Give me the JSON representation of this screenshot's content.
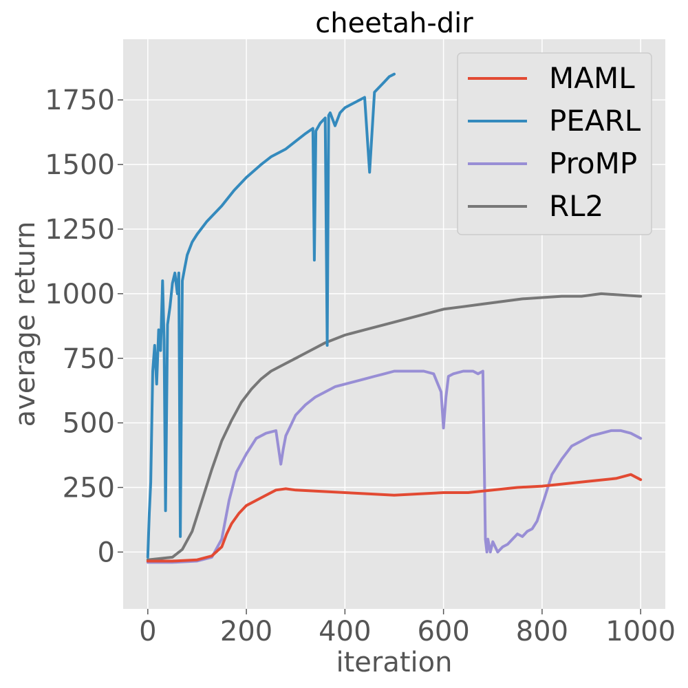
{
  "chart_data": {
    "type": "line",
    "title": "cheetah-dir",
    "xlabel": "iteration",
    "ylabel": "average return",
    "xlim": [
      -50,
      1050
    ],
    "ylim": [
      -220,
      1985
    ],
    "xticks": [
      0,
      200,
      400,
      600,
      800,
      1000
    ],
    "yticks": [
      0,
      250,
      500,
      750,
      1000,
      1250,
      1500,
      1750
    ],
    "grid": true,
    "legend_position": "top-right",
    "background_color": "#e5e5e5",
    "series": [
      {
        "name": "MAML",
        "color": "#e24a33",
        "x": [
          0,
          50,
          100,
          130,
          150,
          160,
          170,
          185,
          200,
          230,
          260,
          280,
          300,
          350,
          400,
          450,
          500,
          550,
          600,
          650,
          700,
          750,
          800,
          850,
          900,
          950,
          980,
          1000
        ],
        "y": [
          -35,
          -35,
          -30,
          -15,
          20,
          70,
          110,
          150,
          180,
          210,
          240,
          245,
          240,
          235,
          230,
          225,
          220,
          225,
          230,
          230,
          240,
          250,
          255,
          265,
          275,
          285,
          300,
          280
        ]
      },
      {
        "name": "PEARL",
        "color": "#348abd",
        "x": [
          0,
          3,
          6,
          10,
          14,
          18,
          22,
          26,
          30,
          33,
          36,
          40,
          45,
          50,
          55,
          60,
          63,
          66,
          70,
          75,
          80,
          90,
          100,
          120,
          150,
          175,
          200,
          230,
          250,
          280,
          300,
          320,
          335,
          338,
          341,
          350,
          360,
          364,
          367,
          370,
          380,
          390,
          400,
          420,
          440,
          450,
          460,
          470,
          480,
          490,
          500
        ],
        "y": [
          -20,
          150,
          270,
          700,
          800,
          650,
          860,
          780,
          1050,
          820,
          160,
          880,
          950,
          1040,
          1080,
          1000,
          1080,
          60,
          1050,
          1100,
          1150,
          1200,
          1230,
          1280,
          1340,
          1400,
          1450,
          1500,
          1530,
          1560,
          1590,
          1620,
          1640,
          1130,
          1630,
          1660,
          1680,
          800,
          1690,
          1700,
          1650,
          1700,
          1720,
          1740,
          1760,
          1470,
          1780,
          1800,
          1820,
          1840,
          1850
        ]
      },
      {
        "name": "ProMP",
        "color": "#988ed5",
        "x": [
          0,
          50,
          100,
          130,
          150,
          165,
          180,
          200,
          220,
          240,
          260,
          270,
          275,
          280,
          290,
          300,
          320,
          340,
          360,
          380,
          400,
          420,
          440,
          460,
          480,
          500,
          520,
          540,
          560,
          580,
          595,
          600,
          605,
          610,
          620,
          640,
          660,
          670,
          680,
          685,
          688,
          690,
          695,
          700,
          710,
          720,
          730,
          740,
          750,
          760,
          770,
          780,
          790,
          800,
          810,
          820,
          840,
          860,
          880,
          900,
          920,
          940,
          960,
          980,
          1000
        ],
        "y": [
          -40,
          -40,
          -35,
          -20,
          50,
          200,
          310,
          380,
          440,
          460,
          470,
          340,
          400,
          450,
          490,
          530,
          570,
          600,
          620,
          640,
          650,
          660,
          670,
          680,
          690,
          700,
          700,
          700,
          700,
          690,
          620,
          480,
          600,
          680,
          690,
          700,
          700,
          690,
          700,
          50,
          0,
          50,
          0,
          40,
          0,
          20,
          30,
          50,
          70,
          60,
          80,
          90,
          120,
          180,
          240,
          300,
          360,
          410,
          430,
          450,
          460,
          470,
          470,
          460,
          440
        ]
      },
      {
        "name": "RL2",
        "color": "#777777",
        "x": [
          0,
          50,
          70,
          90,
          110,
          130,
          150,
          170,
          190,
          210,
          230,
          250,
          270,
          300,
          330,
          360,
          400,
          440,
          480,
          520,
          560,
          600,
          640,
          680,
          720,
          760,
          800,
          840,
          880,
          920,
          960,
          1000
        ],
        "y": [
          -30,
          -20,
          10,
          80,
          200,
          320,
          430,
          510,
          580,
          630,
          670,
          700,
          720,
          750,
          780,
          810,
          840,
          860,
          880,
          900,
          920,
          940,
          950,
          960,
          970,
          980,
          985,
          990,
          990,
          1000,
          995,
          990
        ]
      }
    ]
  }
}
